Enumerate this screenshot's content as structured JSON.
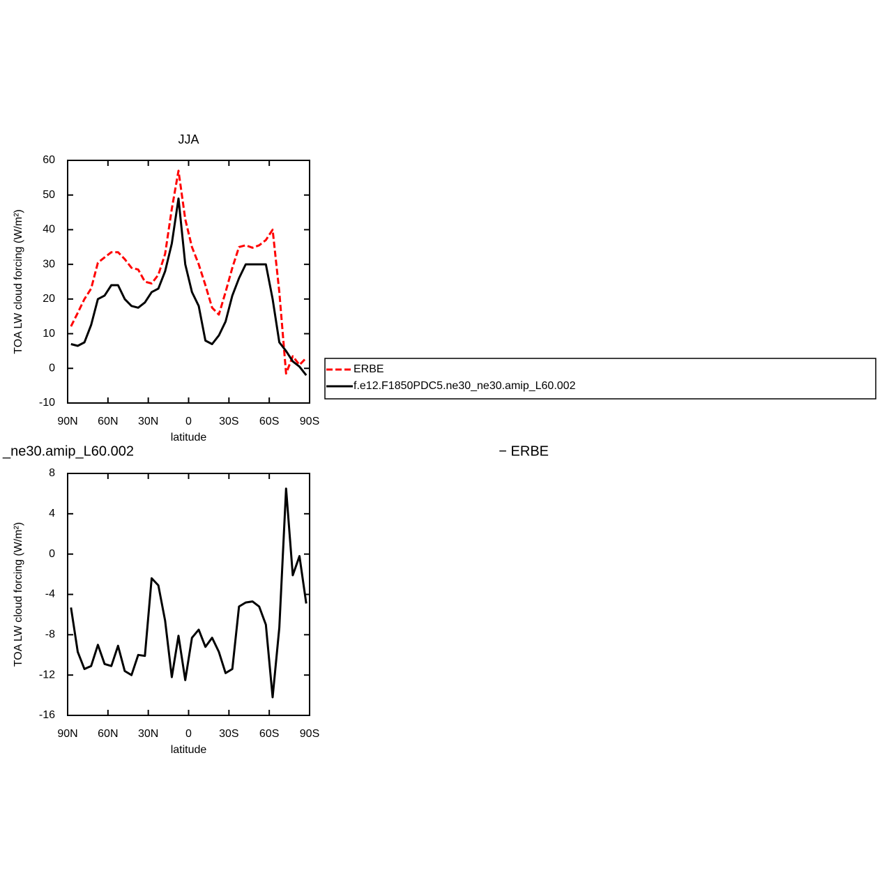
{
  "chart_data": [
    {
      "type": "line",
      "title": "JJA",
      "ylabel": "TOA LW cloud forcing (W/m²)",
      "xlabel": "latitude",
      "x": [
        87.5,
        82.5,
        77.5,
        72.5,
        67.5,
        62.5,
        57.5,
        52.5,
        47.5,
        42.5,
        37.5,
        32.5,
        27.5,
        22.5,
        17.5,
        12.5,
        7.5,
        2.5,
        -2.5,
        -7.5,
        -12.5,
        -17.5,
        -22.5,
        -27.5,
        -32.5,
        -37.5,
        -42.5,
        -47.5,
        -52.5,
        -57.5,
        -62.5,
        -67.5,
        -72.5,
        -77.5,
        -82.5,
        -87.5
      ],
      "xlim": [
        90,
        -90
      ],
      "xticks": [
        {
          "value": 90,
          "label": "90N"
        },
        {
          "value": 60,
          "label": "60N"
        },
        {
          "value": 30,
          "label": "30N"
        },
        0,
        {
          "value": -30,
          "label": "30S"
        },
        {
          "value": -60,
          "label": "60S"
        },
        {
          "value": -90,
          "label": "90S"
        }
      ],
      "ylim": [
        -10,
        60
      ],
      "yticks": [
        -10,
        0,
        10,
        20,
        30,
        40,
        50,
        60
      ],
      "series": [
        {
          "name": "ERBE",
          "color": "#ff0000",
          "line_style": "dashed",
          "values": [
            12.1,
            16,
            20,
            23,
            30.5,
            32,
            33.5,
            33.5,
            31.5,
            29,
            28.5,
            25,
            24.5,
            27,
            33,
            46,
            57,
            43,
            35,
            30,
            24,
            17.5,
            15.5,
            22,
            29,
            35,
            35.5,
            34.8,
            35.5,
            37,
            40,
            22,
            -1.5,
            3.5,
            1,
            3
          ]
        },
        {
          "name": "f.e12.F1850PDC5.ne30_ne30.amip_L60.002",
          "color": "#000000",
          "line_style": "solid",
          "values": [
            7,
            6.5,
            7.5,
            12.5,
            20,
            21,
            24,
            24,
            20,
            18,
            17.5,
            19,
            22,
            23,
            28,
            36,
            49,
            30,
            22,
            18,
            8,
            7,
            9.5,
            13.5,
            21,
            26,
            30,
            30,
            30,
            30,
            20,
            7.5,
            5,
            2,
            0.5,
            -2
          ]
        }
      ]
    },
    {
      "type": "line",
      "left_string": "_ne30.amip_L60.002",
      "right_string": "−  ERBE",
      "ylabel": "TOA LW cloud forcing (W/m²)",
      "xlabel": "latitude",
      "x": [
        87.5,
        82.5,
        77.5,
        72.5,
        67.5,
        62.5,
        57.5,
        52.5,
        47.5,
        42.5,
        37.5,
        32.5,
        27.5,
        22.5,
        17.5,
        12.5,
        7.5,
        2.5,
        -2.5,
        -7.5,
        -12.5,
        -17.5,
        -22.5,
        -27.5,
        -32.5,
        -37.5,
        -42.5,
        -47.5,
        -52.5,
        -57.5,
        -62.5,
        -67.5,
        -72.5,
        -77.5,
        -82.5,
        -87.5
      ],
      "xlim": [
        90,
        -90
      ],
      "xticks": [
        {
          "value": 90,
          "label": "90N"
        },
        {
          "value": 60,
          "label": "60N"
        },
        {
          "value": 30,
          "label": "30N"
        },
        0,
        {
          "value": -30,
          "label": "30S"
        },
        {
          "value": -60,
          "label": "60S"
        },
        {
          "value": -90,
          "label": "90S"
        }
      ],
      "ylim": [
        -16,
        8
      ],
      "yticks": [
        -16,
        -12,
        -8,
        -4,
        0,
        4,
        8
      ],
      "series": [
        {
          "color": "#000000",
          "line_style": "solid",
          "values": [
            -5.3,
            -9.7,
            -11.4,
            -11.1,
            -9,
            -10.9,
            -11.1,
            -9.1,
            -11.6,
            -12,
            -10,
            -10.1,
            -2.4,
            -3.1,
            -6.6,
            -12.2,
            -8.1,
            -12.5,
            -8.3,
            -7.5,
            -9.2,
            -8.3,
            -9.7,
            -11.8,
            -11.4,
            -5.2,
            -4.8,
            -4.7,
            -5.2,
            -7,
            -14.2,
            -7.3,
            6.5,
            -2.1,
            -0.2,
            -4.9
          ]
        }
      ]
    }
  ]
}
